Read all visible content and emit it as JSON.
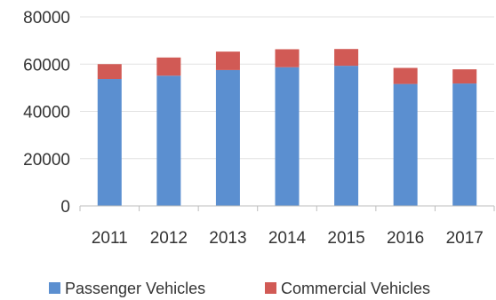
{
  "chart_data": {
    "type": "bar",
    "stacked": true,
    "categories": [
      "2011",
      "2012",
      "2013",
      "2014",
      "2015",
      "2016",
      "2017"
    ],
    "series": [
      {
        "name": "Passenger Vehicles",
        "color": "#5b8fd0",
        "values": [
          53700,
          55100,
          57500,
          58700,
          59300,
          51600,
          51800
        ]
      },
      {
        "name": "Commercial Vehicles",
        "color": "#d15a55",
        "values": [
          6300,
          7700,
          7800,
          7600,
          7100,
          6800,
          6000
        ]
      }
    ],
    "ylim": [
      0,
      80000
    ],
    "yticks": [
      "0",
      "20000",
      "40000",
      "60000",
      "80000"
    ],
    "grid": true,
    "legend_position": "bottom",
    "title": "",
    "xlabel": "",
    "ylabel": ""
  }
}
